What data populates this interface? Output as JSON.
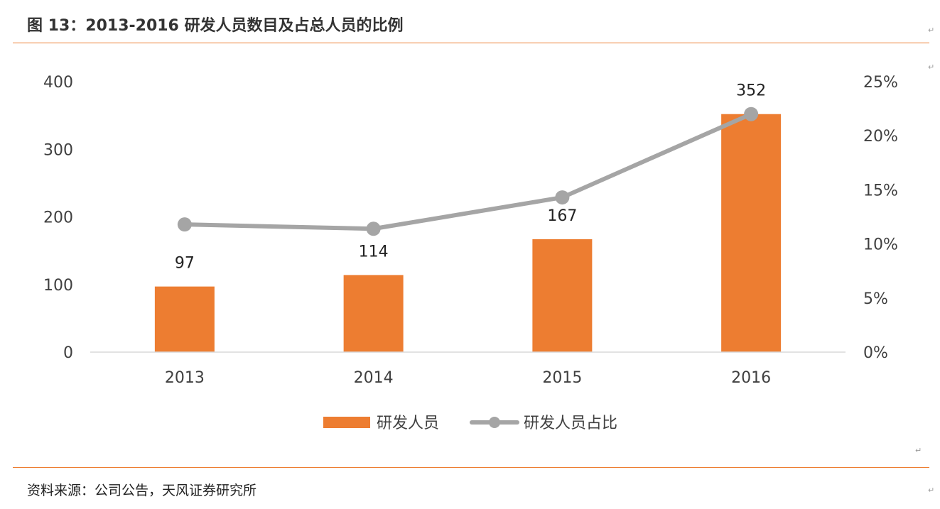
{
  "header": {
    "title": "图 13：2013-2016 研发人员数目及占总人员的比例"
  },
  "footer": {
    "source": "资料来源：公司公告，天风证券研究所"
  },
  "colors": {
    "accent": "#ED7D31",
    "bar": "#ED7D31",
    "line": "#A5A5A5",
    "axis": "#D9D9D9",
    "text": "#404040"
  },
  "chart_data": {
    "type": "bar",
    "categories": [
      "2013",
      "2014",
      "2015",
      "2016"
    ],
    "series": [
      {
        "name": "研发人员",
        "type": "bar",
        "axis": "left",
        "values": [
          97,
          114,
          167,
          352
        ],
        "data_labels": [
          "97",
          "114",
          "167",
          "352"
        ]
      },
      {
        "name": "研发人员占比",
        "type": "line",
        "axis": "right",
        "values": [
          11.8,
          11.4,
          14.3,
          22.0
        ]
      }
    ],
    "y_left": {
      "min": 0,
      "max": 400,
      "ticks": [
        "0",
        "100",
        "200",
        "300",
        "400"
      ]
    },
    "y_right": {
      "min": 0,
      "max": 25,
      "ticks": [
        "0%",
        "5%",
        "10%",
        "15%",
        "20%",
        "25%"
      ]
    },
    "legend": [
      "研发人员",
      "研发人员占比"
    ],
    "legend_position": "bottom",
    "grid": false
  }
}
